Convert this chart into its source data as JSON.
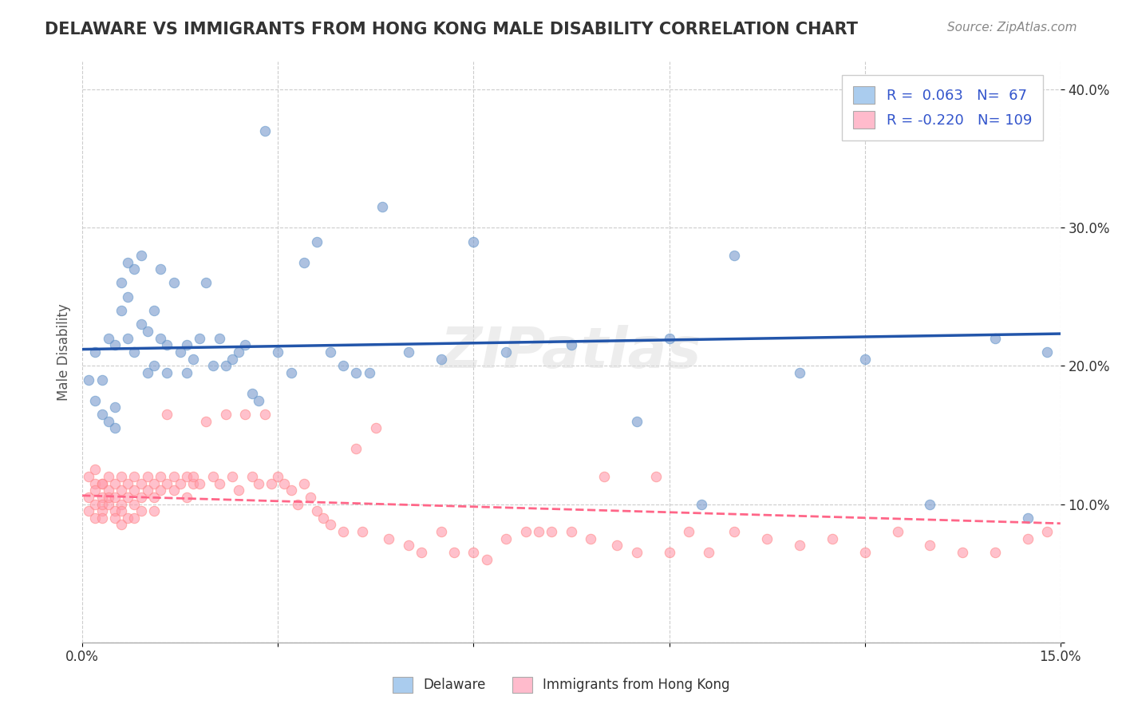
{
  "title": "DELAWARE VS IMMIGRANTS FROM HONG KONG MALE DISABILITY CORRELATION CHART",
  "source": "Source: ZipAtlas.com",
  "xlabel_bottom": "",
  "ylabel": "Male Disability",
  "watermark": "ZIPatlas",
  "xlim": [
    0.0,
    0.15
  ],
  "ylim": [
    0.0,
    0.42
  ],
  "xticks": [
    0.0,
    0.03,
    0.06,
    0.09,
    0.12,
    0.15
  ],
  "xtick_labels": [
    "0.0%",
    "",
    "",
    "",
    "",
    "15.0%"
  ],
  "yticks": [
    0.0,
    0.1,
    0.2,
    0.3,
    0.4
  ],
  "ytick_labels": [
    "",
    "10.0%",
    "20.0%",
    "30.0%",
    "40.0%"
  ],
  "delaware_R": 0.063,
  "delaware_N": 67,
  "hk_R": -0.22,
  "hk_N": 109,
  "blue_color": "#6699CC",
  "pink_color": "#FF8888",
  "blue_fill": "#AABBDD",
  "pink_fill": "#FFBBCC",
  "blue_scatter_color": "#7799CC",
  "pink_scatter_color": "#FF99AA",
  "blue_line_color": "#2255AA",
  "pink_line_color": "#FF6688",
  "legend_blue_patch": "#AACCEE",
  "legend_pink_patch": "#FFBBCC",
  "background_color": "#FFFFFF",
  "grid_color": "#CCCCCC",
  "delaware_x": [
    0.001,
    0.002,
    0.002,
    0.003,
    0.003,
    0.004,
    0.004,
    0.005,
    0.005,
    0.005,
    0.006,
    0.006,
    0.007,
    0.007,
    0.007,
    0.008,
    0.008,
    0.009,
    0.009,
    0.01,
    0.01,
    0.011,
    0.011,
    0.012,
    0.012,
    0.013,
    0.013,
    0.014,
    0.015,
    0.016,
    0.016,
    0.017,
    0.018,
    0.019,
    0.02,
    0.021,
    0.022,
    0.023,
    0.024,
    0.025,
    0.026,
    0.027,
    0.028,
    0.03,
    0.032,
    0.034,
    0.036,
    0.038,
    0.04,
    0.042,
    0.044,
    0.046,
    0.05,
    0.055,
    0.06,
    0.065,
    0.075,
    0.085,
    0.09,
    0.095,
    0.1,
    0.11,
    0.12,
    0.13,
    0.14,
    0.145,
    0.148
  ],
  "delaware_y": [
    0.19,
    0.175,
    0.21,
    0.165,
    0.19,
    0.16,
    0.22,
    0.155,
    0.17,
    0.215,
    0.24,
    0.26,
    0.22,
    0.25,
    0.275,
    0.27,
    0.21,
    0.28,
    0.23,
    0.225,
    0.195,
    0.2,
    0.24,
    0.27,
    0.22,
    0.195,
    0.215,
    0.26,
    0.21,
    0.195,
    0.215,
    0.205,
    0.22,
    0.26,
    0.2,
    0.22,
    0.2,
    0.205,
    0.21,
    0.215,
    0.18,
    0.175,
    0.37,
    0.21,
    0.195,
    0.275,
    0.29,
    0.21,
    0.2,
    0.195,
    0.195,
    0.315,
    0.21,
    0.205,
    0.29,
    0.21,
    0.215,
    0.16,
    0.22,
    0.1,
    0.28,
    0.195,
    0.205,
    0.1,
    0.22,
    0.09,
    0.21
  ],
  "hk_x": [
    0.001,
    0.001,
    0.001,
    0.002,
    0.002,
    0.002,
    0.002,
    0.002,
    0.003,
    0.003,
    0.003,
    0.003,
    0.003,
    0.003,
    0.004,
    0.004,
    0.004,
    0.004,
    0.005,
    0.005,
    0.005,
    0.005,
    0.006,
    0.006,
    0.006,
    0.006,
    0.006,
    0.007,
    0.007,
    0.007,
    0.008,
    0.008,
    0.008,
    0.008,
    0.009,
    0.009,
    0.009,
    0.01,
    0.01,
    0.011,
    0.011,
    0.011,
    0.012,
    0.012,
    0.013,
    0.013,
    0.014,
    0.014,
    0.015,
    0.016,
    0.016,
    0.017,
    0.017,
    0.018,
    0.019,
    0.02,
    0.021,
    0.022,
    0.023,
    0.024,
    0.025,
    0.026,
    0.027,
    0.028,
    0.029,
    0.03,
    0.031,
    0.032,
    0.033,
    0.034,
    0.035,
    0.036,
    0.037,
    0.038,
    0.04,
    0.042,
    0.043,
    0.045,
    0.047,
    0.05,
    0.052,
    0.055,
    0.057,
    0.06,
    0.062,
    0.065,
    0.068,
    0.07,
    0.072,
    0.075,
    0.078,
    0.08,
    0.082,
    0.085,
    0.088,
    0.09,
    0.093,
    0.096,
    0.1,
    0.105,
    0.11,
    0.115,
    0.12,
    0.125,
    0.13,
    0.135,
    0.14,
    0.145,
    0.148
  ],
  "hk_y": [
    0.12,
    0.105,
    0.095,
    0.115,
    0.11,
    0.1,
    0.125,
    0.09,
    0.115,
    0.105,
    0.095,
    0.115,
    0.1,
    0.09,
    0.12,
    0.11,
    0.1,
    0.105,
    0.115,
    0.105,
    0.095,
    0.09,
    0.12,
    0.11,
    0.1,
    0.095,
    0.085,
    0.115,
    0.105,
    0.09,
    0.12,
    0.11,
    0.1,
    0.09,
    0.115,
    0.105,
    0.095,
    0.12,
    0.11,
    0.115,
    0.105,
    0.095,
    0.12,
    0.11,
    0.115,
    0.165,
    0.12,
    0.11,
    0.115,
    0.12,
    0.105,
    0.115,
    0.12,
    0.115,
    0.16,
    0.12,
    0.115,
    0.165,
    0.12,
    0.11,
    0.165,
    0.12,
    0.115,
    0.165,
    0.115,
    0.12,
    0.115,
    0.11,
    0.1,
    0.115,
    0.105,
    0.095,
    0.09,
    0.085,
    0.08,
    0.14,
    0.08,
    0.155,
    0.075,
    0.07,
    0.065,
    0.08,
    0.065,
    0.065,
    0.06,
    0.075,
    0.08,
    0.08,
    0.08,
    0.08,
    0.075,
    0.12,
    0.07,
    0.065,
    0.12,
    0.065,
    0.08,
    0.065,
    0.08,
    0.075,
    0.07,
    0.075,
    0.065,
    0.08,
    0.07,
    0.065,
    0.065,
    0.075,
    0.08
  ]
}
